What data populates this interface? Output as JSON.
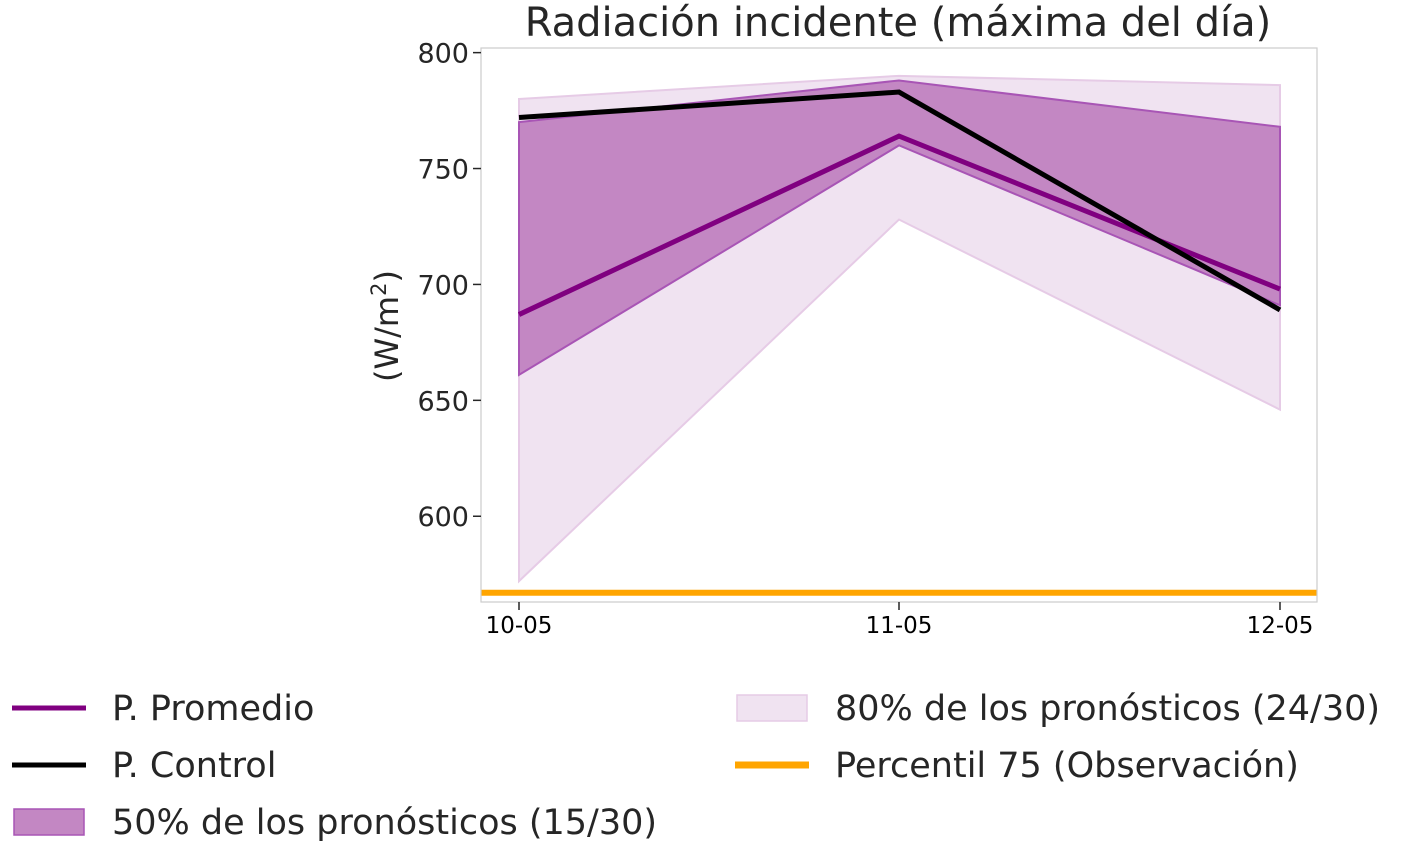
{
  "chart_data": {
    "type": "line",
    "title": "Radiación incidente (máxima del día)",
    "xlabel": "",
    "ylabel": "(W/m²)",
    "ylabel_parts": {
      "main": "(W/m",
      "sup": "2",
      "close": ")"
    },
    "categories": [
      "10-05",
      "11-05",
      "12-05"
    ],
    "ylim": [
      563,
      802
    ],
    "yticks": [
      600,
      650,
      700,
      750,
      800
    ],
    "grid": false,
    "legend_placement": "below",
    "series": [
      {
        "name": "P. Promedio",
        "kind": "line",
        "color": "#800080",
        "values": [
          687,
          764,
          698
        ]
      },
      {
        "name": "P. Control",
        "kind": "line",
        "color": "#000000",
        "values": [
          772,
          783,
          689
        ]
      },
      {
        "name": "50% de los pronósticos (15/30)",
        "kind": "band",
        "color": "#c387c3",
        "edge": "#a855b5",
        "lower": [
          661,
          760,
          691
        ],
        "upper": [
          770,
          788,
          768
        ]
      },
      {
        "name": "80% de los pronósticos (24/30)",
        "kind": "band",
        "color": "#f0e3f1",
        "edge": "#e6cbe6",
        "lower": [
          572,
          728,
          646
        ],
        "upper": [
          780,
          790,
          786
        ]
      },
      {
        "name": "Percentil 75 (Observación)",
        "kind": "hline",
        "color": "#ffa500",
        "value": 567
      }
    ],
    "legend_order": [
      "P. Promedio",
      "P. Control",
      "50% de los pronósticos (15/30)",
      "80% de los pronósticos (24/30)",
      "Percentil 75 (Observación)"
    ]
  }
}
